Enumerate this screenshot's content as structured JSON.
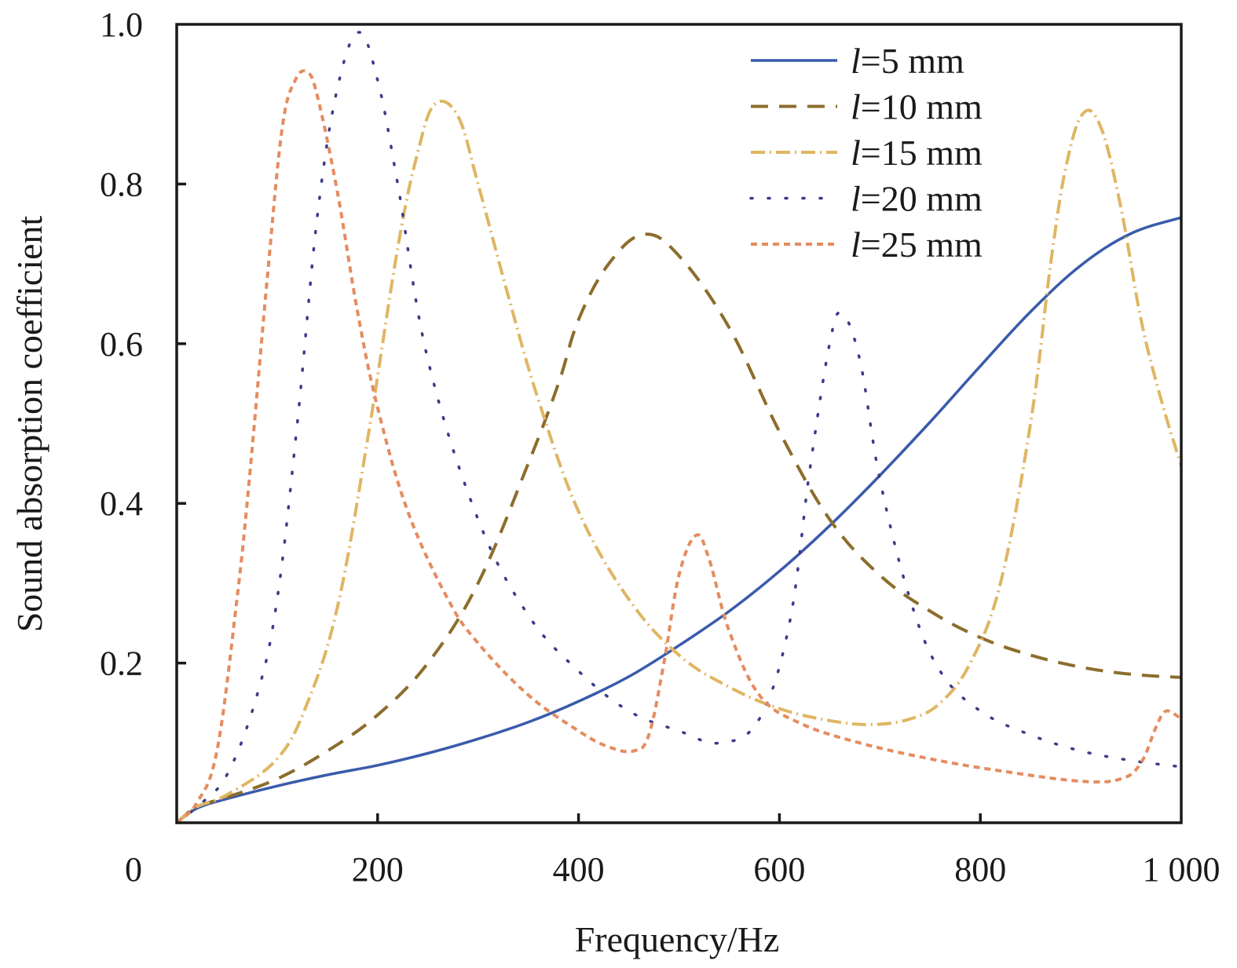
{
  "chart_data": {
    "type": "line",
    "title": "",
    "xlabel": "Frequency/Hz",
    "ylabel": "Sound absorption coefficient",
    "xlim": [
      0,
      1000
    ],
    "ylim": [
      0,
      1.0
    ],
    "grid": false,
    "legend_position": "top-right",
    "x_ticks": [
      {
        "value": 0,
        "label": "0"
      },
      {
        "value": 200,
        "label": "200"
      },
      {
        "value": 400,
        "label": "400"
      },
      {
        "value": 600,
        "label": "600"
      },
      {
        "value": 800,
        "label": "800"
      },
      {
        "value": 1000,
        "label": "1 000"
      }
    ],
    "y_ticks": [
      {
        "value": 0.2,
        "label": "0.2"
      },
      {
        "value": 0.4,
        "label": "0.4"
      },
      {
        "value": 0.6,
        "label": "0.6"
      },
      {
        "value": 0.8,
        "label": "0.8"
      },
      {
        "value": 1.0,
        "label": "1.0"
      }
    ],
    "series": [
      {
        "name": "l=5 mm",
        "var": "l",
        "rest": "=5 mm",
        "color": "#3a5bab",
        "style": "solid",
        "x": [
          0,
          20,
          50,
          100,
          150,
          200,
          250,
          300,
          350,
          400,
          450,
          500,
          550,
          600,
          650,
          700,
          750,
          800,
          850,
          900,
          950,
          1000
        ],
        "y": [
          0,
          0.018,
          0.03,
          0.046,
          0.06,
          0.072,
          0.087,
          0.105,
          0.126,
          0.152,
          0.183,
          0.222,
          0.265,
          0.315,
          0.372,
          0.435,
          0.502,
          0.572,
          0.64,
          0.698,
          0.738,
          0.758
        ]
      },
      {
        "name": "l=10 mm",
        "var": "l",
        "rest": "=10 mm",
        "color": "#8c6d2c",
        "style": "dashed",
        "x": [
          0,
          20,
          50,
          100,
          150,
          200,
          250,
          300,
          350,
          380,
          400,
          430,
          465,
          500,
          550,
          600,
          650,
          700,
          750,
          800,
          850,
          900,
          950,
          1000
        ],
        "y": [
          0,
          0.02,
          0.032,
          0.055,
          0.09,
          0.135,
          0.2,
          0.3,
          0.45,
          0.55,
          0.63,
          0.7,
          0.737,
          0.71,
          0.62,
          0.49,
          0.38,
          0.31,
          0.265,
          0.232,
          0.21,
          0.195,
          0.186,
          0.182
        ]
      },
      {
        "name": "l=15 mm",
        "var": "l",
        "rest": "=15 mm",
        "color": "#dfb663",
        "style": "dashdot",
        "x": [
          0,
          20,
          50,
          100,
          130,
          160,
          190,
          220,
          240,
          257,
          280,
          300,
          330,
          360,
          400,
          450,
          500,
          550,
          600,
          650,
          692,
          730,
          760,
          790,
          820,
          850,
          870,
          885,
          902,
          920,
          940,
          960,
          980,
          1000
        ],
        "y": [
          0,
          0.02,
          0.035,
          0.08,
          0.15,
          0.27,
          0.48,
          0.72,
          0.84,
          0.9,
          0.885,
          0.8,
          0.66,
          0.53,
          0.39,
          0.28,
          0.21,
          0.17,
          0.143,
          0.128,
          0.123,
          0.13,
          0.15,
          0.2,
          0.3,
          0.5,
          0.7,
          0.82,
          0.888,
          0.871,
          0.77,
          0.63,
          0.53,
          0.447
        ]
      },
      {
        "name": "l=20 mm",
        "var": "l",
        "rest": "=20 mm",
        "color": "#3c3b8a",
        "style": "dotted",
        "x": [
          0,
          20,
          50,
          80,
          100,
          120,
          140,
          160,
          181,
          200,
          220,
          250,
          300,
          350,
          400,
          450,
          500,
          541,
          580,
          610,
          630,
          650,
          662,
          680,
          700,
          730,
          760,
          800,
          850,
          900,
          950,
          1000
        ],
        "y": [
          0,
          0.02,
          0.06,
          0.16,
          0.28,
          0.5,
          0.76,
          0.92,
          0.99,
          0.93,
          0.8,
          0.58,
          0.38,
          0.26,
          0.19,
          0.14,
          0.115,
          0.1,
          0.13,
          0.25,
          0.44,
          0.6,
          0.638,
          0.58,
          0.43,
          0.28,
          0.19,
          0.14,
          0.11,
          0.09,
          0.078,
          0.07
        ]
      },
      {
        "name": "l=25 mm",
        "var": "l",
        "rest": "=25 mm",
        "color": "#e58c60",
        "style": "shortdash",
        "x": [
          0,
          20,
          40,
          60,
          73,
          90,
          105,
          118,
          130,
          140,
          160,
          180,
          200,
          230,
          270,
          300,
          350,
          400,
          430,
          455,
          470,
          485,
          500,
          517,
          530,
          550,
          580,
          620,
          680,
          750,
          820,
          900,
          940,
          960,
          975,
          985,
          1000
        ],
        "y": [
          0,
          0.025,
          0.09,
          0.28,
          0.44,
          0.68,
          0.87,
          0.93,
          0.94,
          0.91,
          0.79,
          0.64,
          0.52,
          0.39,
          0.28,
          0.225,
          0.16,
          0.115,
          0.095,
          0.09,
          0.11,
          0.2,
          0.31,
          0.36,
          0.33,
          0.24,
          0.16,
          0.125,
          0.1,
          0.08,
          0.065,
          0.052,
          0.055,
          0.075,
          0.12,
          0.14,
          0.13
        ]
      }
    ]
  }
}
